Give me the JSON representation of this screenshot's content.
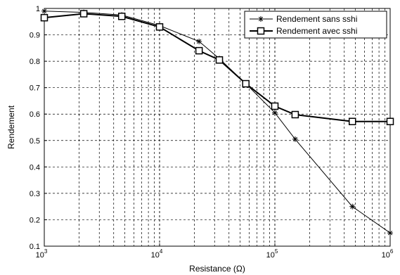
{
  "chart_data": {
    "type": "line",
    "xscale": "log",
    "xlabel": "Resistance (Ω)",
    "ylabel": "Rendement",
    "xlim": [
      1000,
      1000000
    ],
    "ylim": [
      0.1,
      1
    ],
    "grid": true,
    "legend_position": "top-right",
    "x_ticks": [
      {
        "base": "10",
        "exp": "3",
        "value": 1000
      },
      {
        "base": "10",
        "exp": "4",
        "value": 10000
      },
      {
        "base": "10",
        "exp": "5",
        "value": 100000
      },
      {
        "base": "10",
        "exp": "6",
        "value": 1000000
      }
    ],
    "y_ticks": [
      "0.1",
      "0.2",
      "0.3",
      "0.4",
      "0.5",
      "0.6",
      "0.7",
      "0.8",
      "0.9",
      "1"
    ],
    "series": [
      {
        "name": "Rendement sans sshi",
        "marker": "asterisk",
        "color": "#000000",
        "x": [
          1000,
          2200,
          4700,
          10000,
          22000,
          33000,
          56000,
          100000,
          150000,
          470000,
          1000000
        ],
        "y": [
          0.99,
          0.985,
          0.975,
          0.935,
          0.875,
          0.81,
          0.715,
          0.605,
          0.505,
          0.25,
          0.15
        ]
      },
      {
        "name": "Rendement avec sshi",
        "marker": "square",
        "color": "#000000",
        "x": [
          1000,
          2200,
          4700,
          10000,
          22000,
          33000,
          56000,
          100000,
          150000,
          470000,
          1000000
        ],
        "y": [
          0.965,
          0.98,
          0.97,
          0.93,
          0.84,
          0.805,
          0.715,
          0.63,
          0.598,
          0.572,
          0.572
        ]
      }
    ]
  }
}
